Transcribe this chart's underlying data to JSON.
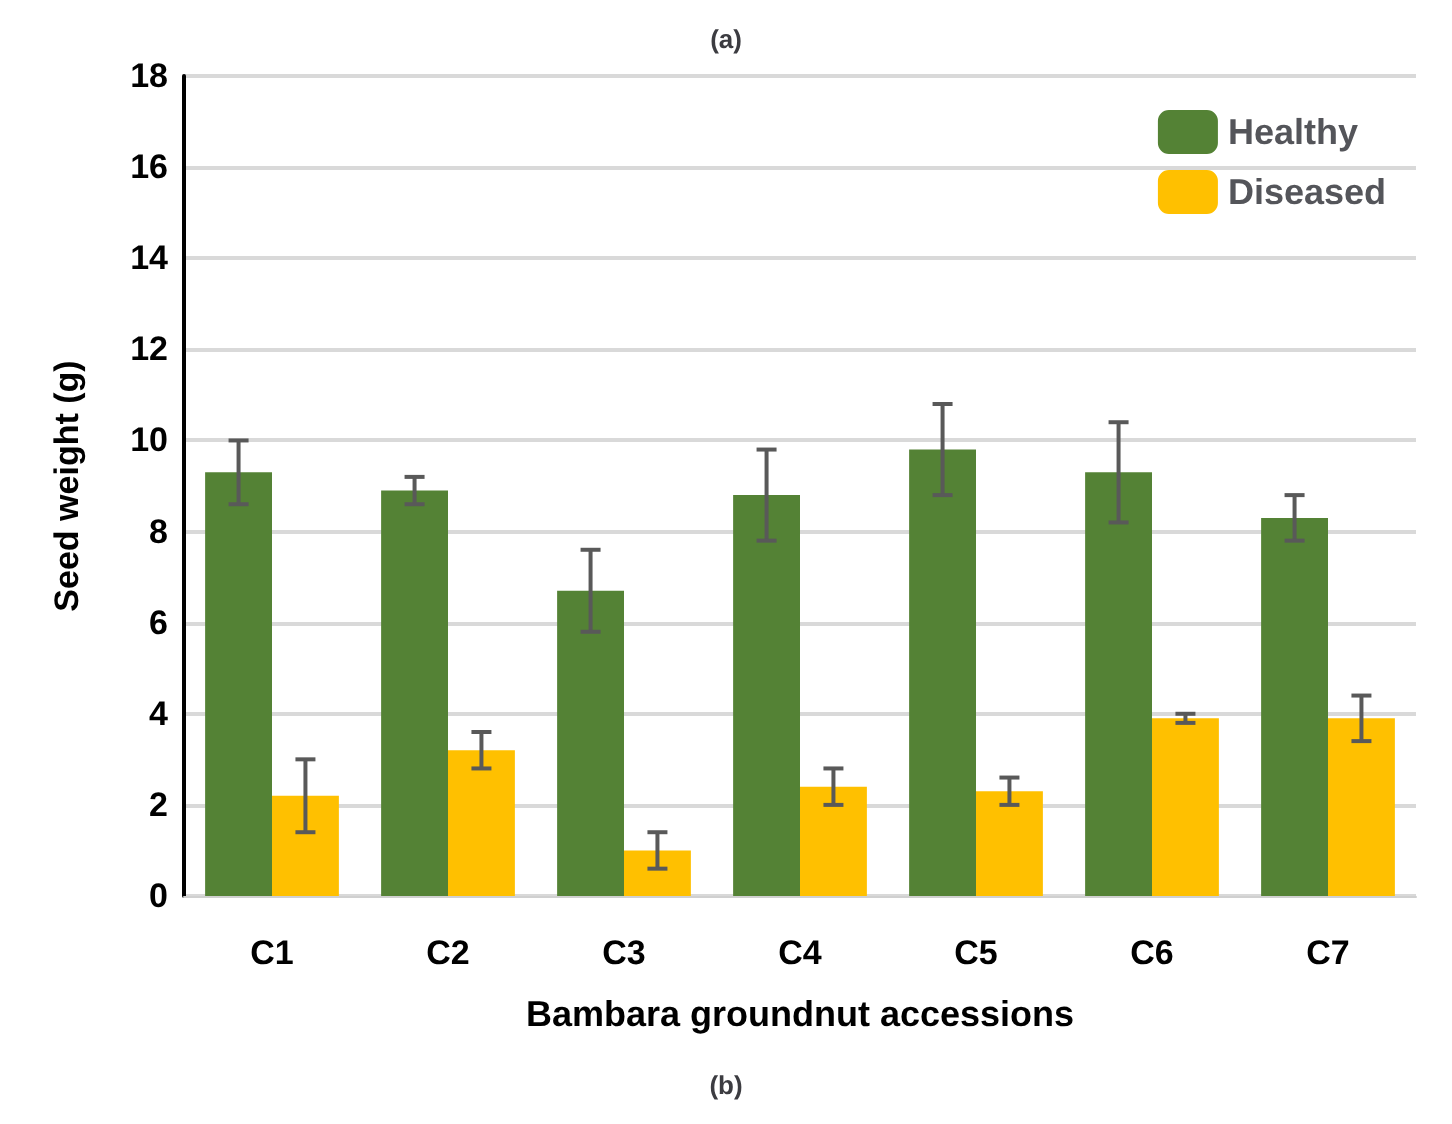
{
  "chart_data": {
    "type": "bar",
    "xlabel": "Bambara groundnut accessions",
    "ylabel": "Seed weight (g)",
    "annotations": [
      "(a)",
      "(b)"
    ],
    "categories": [
      "C1",
      "C2",
      "C3",
      "C4",
      "C5",
      "C6",
      "C7"
    ],
    "series": [
      {
        "name": "Healthy",
        "color": "#548235",
        "values": [
          9.3,
          8.9,
          6.7,
          8.8,
          9.8,
          9.3,
          8.3
        ],
        "errors": [
          0.7,
          0.3,
          0.9,
          1.0,
          1.0,
          1.1,
          0.5
        ]
      },
      {
        "name": "Diseased",
        "color": "#ffc000",
        "values": [
          2.2,
          3.2,
          1.0,
          2.4,
          2.3,
          3.9,
          3.9
        ],
        "errors": [
          0.8,
          0.4,
          0.4,
          0.4,
          0.3,
          0.1,
          0.5
        ]
      }
    ],
    "ylim": [
      0,
      18
    ],
    "yticks": [
      0,
      2,
      4,
      6,
      8,
      10,
      12,
      14,
      16,
      18
    ],
    "grid": "y",
    "legend": "top right"
  }
}
